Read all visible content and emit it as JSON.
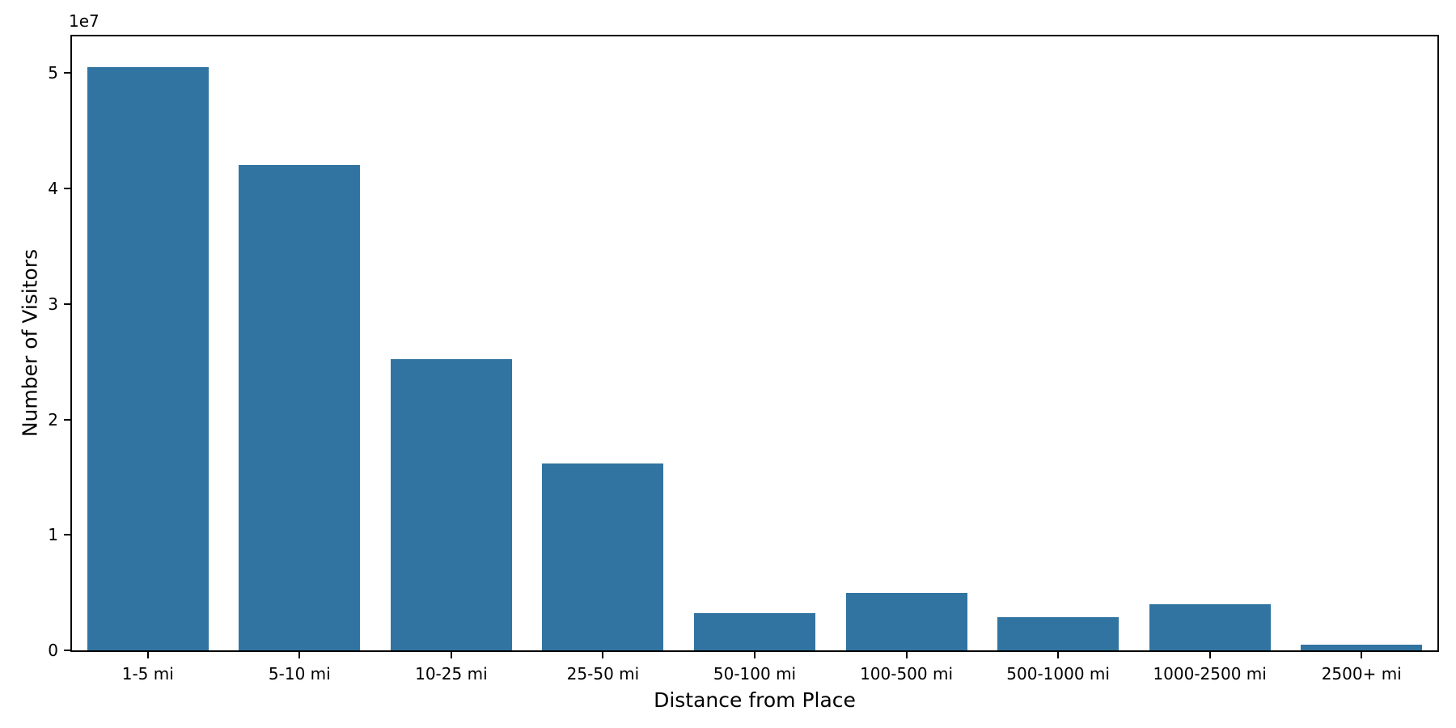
{
  "chart_data": {
    "type": "bar",
    "title": "",
    "xlabel": "Distance from Place",
    "ylabel": "Number of Visitors",
    "y_offset_label": "1e7",
    "categories": [
      "1-5 mi",
      "5-10 mi",
      "10-25 mi",
      "25-50 mi",
      "50-100 mi",
      "100-500 mi",
      "500-1000 mi",
      "1000-2500 mi",
      "2500+ mi"
    ],
    "values": [
      50500000,
      42000000,
      25200000,
      16200000,
      3200000,
      5000000,
      2900000,
      4000000,
      500000
    ],
    "y_ticks": [
      0,
      10000000,
      20000000,
      30000000,
      40000000,
      50000000
    ],
    "y_tick_labels": [
      "0",
      "1",
      "2",
      "3",
      "4",
      "5"
    ],
    "ylim": [
      0,
      53170000
    ],
    "bar_width_fraction": 0.8,
    "grid": false,
    "legend_position": "none",
    "colors": {
      "bar": "#3274a1",
      "axis": "#000000",
      "background": "#ffffff",
      "text": "#000000"
    }
  }
}
